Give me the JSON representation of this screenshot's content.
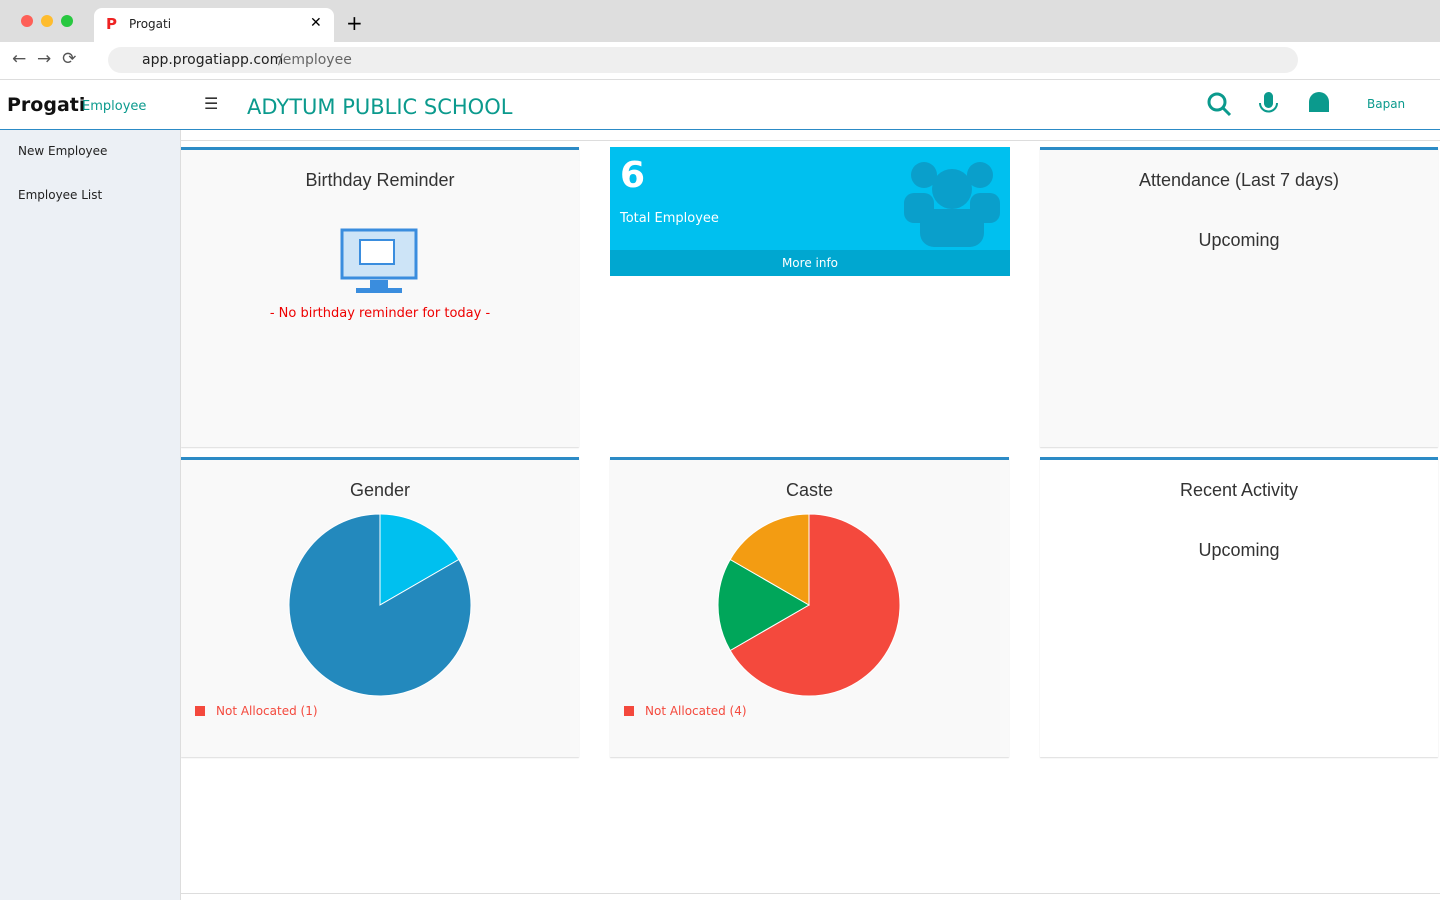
{
  "browser": {
    "tab_title": "Progati",
    "url_host": "app.progatiapp.com",
    "url_path": "/employee"
  },
  "header": {
    "brand": "Progati",
    "module": "Employee",
    "school": "ADYTUM PUBLIC SCHOOL",
    "user": "Bapan"
  },
  "sidebar": {
    "items": [
      "New Employee",
      "Employee List"
    ]
  },
  "birthday": {
    "title": "Birthday Reminder",
    "message": "- No birthday reminder for today -"
  },
  "total": {
    "count": "6",
    "label": "Total Employee",
    "link": "More info"
  },
  "attendance": {
    "title": "Attendance (Last 7 days)",
    "status": "Upcoming"
  },
  "activity": {
    "title": "Recent Activity",
    "status": "Upcoming"
  },
  "chart_data": [
    {
      "type": "pie",
      "title": "Gender",
      "values": [
        1,
        5
      ],
      "colors": [
        "#00c0ef",
        "#2389bd"
      ],
      "legend_label": "Not Allocated (1)",
      "legend_color": "#f4493d"
    },
    {
      "type": "pie",
      "title": "Caste",
      "values": [
        4,
        1,
        1
      ],
      "colors": [
        "#f4493d",
        "#00a65a",
        "#f39c12"
      ],
      "legend_label": "Not Allocated (4)",
      "legend_color": "#f4493d"
    }
  ]
}
